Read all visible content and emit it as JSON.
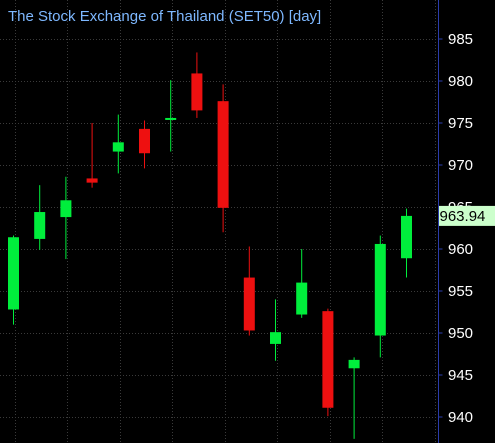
{
  "title": "The Stock Exchange of Thailand (SET50) [day]",
  "colors": {
    "background": "#000000",
    "grid": "#3a3a3a",
    "axis_line": "#2a3caa",
    "title": "#7eb8ff",
    "tick_text": "#ffffff",
    "up": "#00ee3c",
    "down": "#ee1010",
    "last_price_bg": "#ccffcc",
    "last_price_text": "#000000"
  },
  "last_price": {
    "value": 963.94,
    "label": "963.94"
  },
  "chart_data": {
    "type": "candlestick",
    "title": "The Stock Exchange of Thailand (SET50) [day]",
    "ylim": [
      937,
      991
    ],
    "y_ticks": [
      940,
      945,
      950,
      955,
      960,
      965,
      970,
      975,
      980,
      985
    ],
    "grid": true,
    "candles": [
      {
        "open": 952.8,
        "high": 961.6,
        "low": 951.0,
        "close": 961.4
      },
      {
        "open": 961.2,
        "high": 967.6,
        "low": 959.9,
        "close": 964.4
      },
      {
        "open": 963.8,
        "high": 968.6,
        "low": 958.8,
        "close": 965.8
      },
      {
        "open": 968.4,
        "high": 975.0,
        "low": 967.3,
        "close": 967.9
      },
      {
        "open": 971.6,
        "high": 976.0,
        "low": 969.0,
        "close": 972.7
      },
      {
        "open": 974.3,
        "high": 975.3,
        "low": 969.6,
        "close": 971.4
      },
      {
        "open": 975.4,
        "high": 980.1,
        "low": 971.6,
        "close": 975.6
      },
      {
        "open": 980.9,
        "high": 983.4,
        "low": 975.6,
        "close": 976.5
      },
      {
        "open": 977.6,
        "high": 979.6,
        "low": 962.0,
        "close": 964.9
      },
      {
        "open": 956.6,
        "high": 960.3,
        "low": 949.7,
        "close": 950.3
      },
      {
        "open": 948.7,
        "high": 954.0,
        "low": 946.7,
        "close": 950.1
      },
      {
        "open": 952.2,
        "high": 960.0,
        "low": 951.8,
        "close": 956.0
      },
      {
        "open": 952.6,
        "high": 952.9,
        "low": 940.1,
        "close": 941.1
      },
      {
        "open": 945.8,
        "high": 947.1,
        "low": 937.4,
        "close": 946.8
      },
      {
        "open": 949.7,
        "high": 961.6,
        "low": 947.1,
        "close": 960.6
      },
      {
        "open": 958.9,
        "high": 964.8,
        "low": 956.6,
        "close": 963.94
      }
    ]
  }
}
